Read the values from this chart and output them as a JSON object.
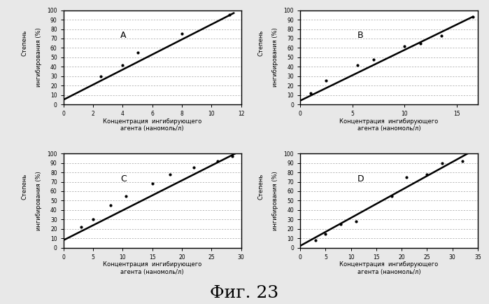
{
  "subplots": [
    {
      "label": "A",
      "xlim": [
        0,
        12
      ],
      "xticks": [
        0,
        2,
        4,
        6,
        8,
        10,
        12
      ],
      "ylim": [
        0,
        100
      ],
      "yticks": [
        0,
        10,
        20,
        30,
        40,
        50,
        60,
        70,
        80,
        90,
        100
      ],
      "scatter_x": [
        2.5,
        4.0,
        5.0,
        8.0,
        11.2
      ],
      "scatter_y": [
        30,
        42,
        55,
        75,
        95
      ],
      "line_x": [
        0.0,
        11.5
      ],
      "line_y": [
        5,
        97
      ]
    },
    {
      "label": "B",
      "xlim": [
        0,
        17
      ],
      "xticks": [
        0,
        5,
        10,
        15
      ],
      "ylim": [
        0,
        100
      ],
      "yticks": [
        0,
        10,
        20,
        30,
        40,
        50,
        60,
        70,
        80,
        90,
        100
      ],
      "scatter_x": [
        1.0,
        2.5,
        5.5,
        7.0,
        10.0,
        11.5,
        13.5,
        16.5
      ],
      "scatter_y": [
        12,
        25,
        42,
        48,
        62,
        65,
        73,
        93
      ],
      "line_x": [
        0.0,
        16.5
      ],
      "line_y": [
        4,
        93
      ]
    },
    {
      "label": "C",
      "xlim": [
        0,
        30
      ],
      "xticks": [
        0,
        5,
        10,
        15,
        20,
        25,
        30
      ],
      "ylim": [
        0,
        100
      ],
      "yticks": [
        0,
        10,
        20,
        30,
        40,
        50,
        60,
        70,
        80,
        90,
        100
      ],
      "scatter_x": [
        3.0,
        5.0,
        8.0,
        10.5,
        15.0,
        18.0,
        22.0,
        26.0,
        28.5
      ],
      "scatter_y": [
        22,
        30,
        45,
        55,
        68,
        78,
        85,
        92,
        97
      ],
      "line_x": [
        0.0,
        29
      ],
      "line_y": [
        8,
        100
      ]
    },
    {
      "label": "D",
      "xlim": [
        0,
        35
      ],
      "xticks": [
        0,
        5,
        10,
        15,
        20,
        25,
        30,
        35
      ],
      "ylim": [
        0,
        100
      ],
      "yticks": [
        0,
        10,
        20,
        30,
        40,
        50,
        60,
        70,
        80,
        90,
        100
      ],
      "scatter_x": [
        3.0,
        5.0,
        8.0,
        11.0,
        18.0,
        21.0,
        25.0,
        28.0,
        32.0
      ],
      "scatter_y": [
        8,
        15,
        25,
        28,
        55,
        75,
        78,
        90,
        92
      ],
      "line_x": [
        0.0,
        33
      ],
      "line_y": [
        2,
        100
      ]
    }
  ],
  "xlabel": "Концентрация  ингибирующего\nагента (наномоль/л)",
  "ylabel1": "Степень",
  "ylabel2": "ингибирования (%)",
  "figure_label": "Фиг. 23",
  "bg_color": "#e8e8e8",
  "plot_bg_color": "#ffffff",
  "grid_color": "#888888",
  "line_color": "#000000",
  "scatter_color": "#000000"
}
